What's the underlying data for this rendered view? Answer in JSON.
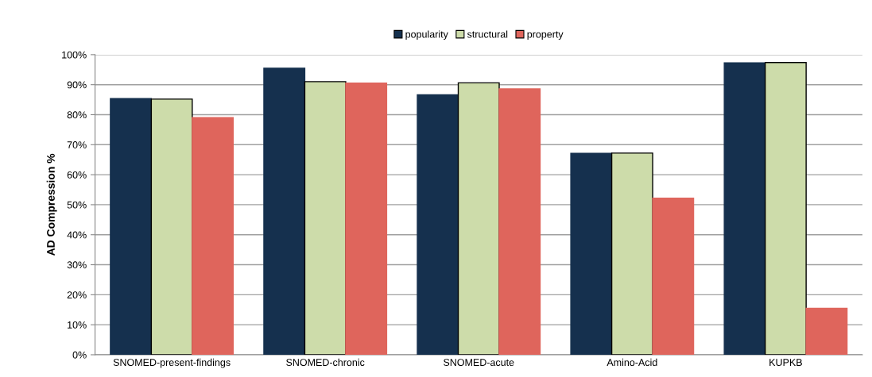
{
  "chart_data": {
    "type": "bar",
    "ylabel": "AD Compression %",
    "categories": [
      "SNOMED-present-findings",
      "SNOMED-chronic",
      "SNOMED-acute",
      "Amino-Acid",
      "KUPKB"
    ],
    "series": [
      {
        "name": "popularity",
        "color": "#15304e",
        "values": [
          85.4,
          95.5,
          86.6,
          67.1,
          97.3
        ]
      },
      {
        "name": "structural",
        "color": "#cddcaa",
        "values": [
          85.2,
          91.0,
          90.6,
          67.2,
          97.4
        ]
      },
      {
        "name": "property",
        "color": "#df655c",
        "values": [
          79.0,
          90.5,
          88.6,
          52.2,
          15.5
        ]
      }
    ],
    "ylim": [
      0,
      100
    ],
    "yticks": [
      {
        "value": 0,
        "label": "0%"
      },
      {
        "value": 10,
        "label": "10%"
      },
      {
        "value": 20,
        "label": "20%"
      },
      {
        "value": 30,
        "label": "30%"
      },
      {
        "value": 40,
        "label": "40%"
      },
      {
        "value": 50,
        "label": "50%"
      },
      {
        "value": 60,
        "label": "60%"
      },
      {
        "value": 70,
        "label": "70%"
      },
      {
        "value": 80,
        "label": "80%"
      },
      {
        "value": 90,
        "label": "90%"
      },
      {
        "value": 100,
        "label": "100%"
      }
    ],
    "grid": "y",
    "legend": "top"
  }
}
